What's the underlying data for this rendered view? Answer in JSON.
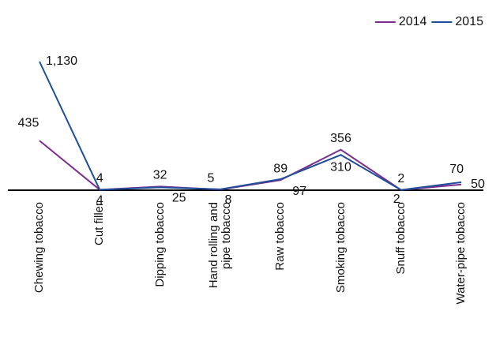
{
  "chart_data": {
    "type": "line",
    "categories": [
      "Chewing tobacco",
      "Cut filler",
      "Dipping tobacco",
      "Hand rolling and pipe tobacco",
      "Raw tobacco",
      "Smoking tobacco",
      "Snuff tobacco",
      "Water-pipe tobacco"
    ],
    "series": [
      {
        "name": "2014",
        "color": "#7b2d8e",
        "values": [
          435,
          4,
          32,
          5,
          89,
          356,
          2,
          50
        ]
      },
      {
        "name": "2015",
        "color": "#1f4e9a",
        "values": [
          1130,
          4,
          25,
          8,
          97,
          310,
          2,
          70
        ],
        "value_labels": [
          "1,130",
          "4",
          "25",
          "8",
          "97",
          "310",
          "2",
          "70"
        ]
      }
    ],
    "legend": "top-right"
  }
}
